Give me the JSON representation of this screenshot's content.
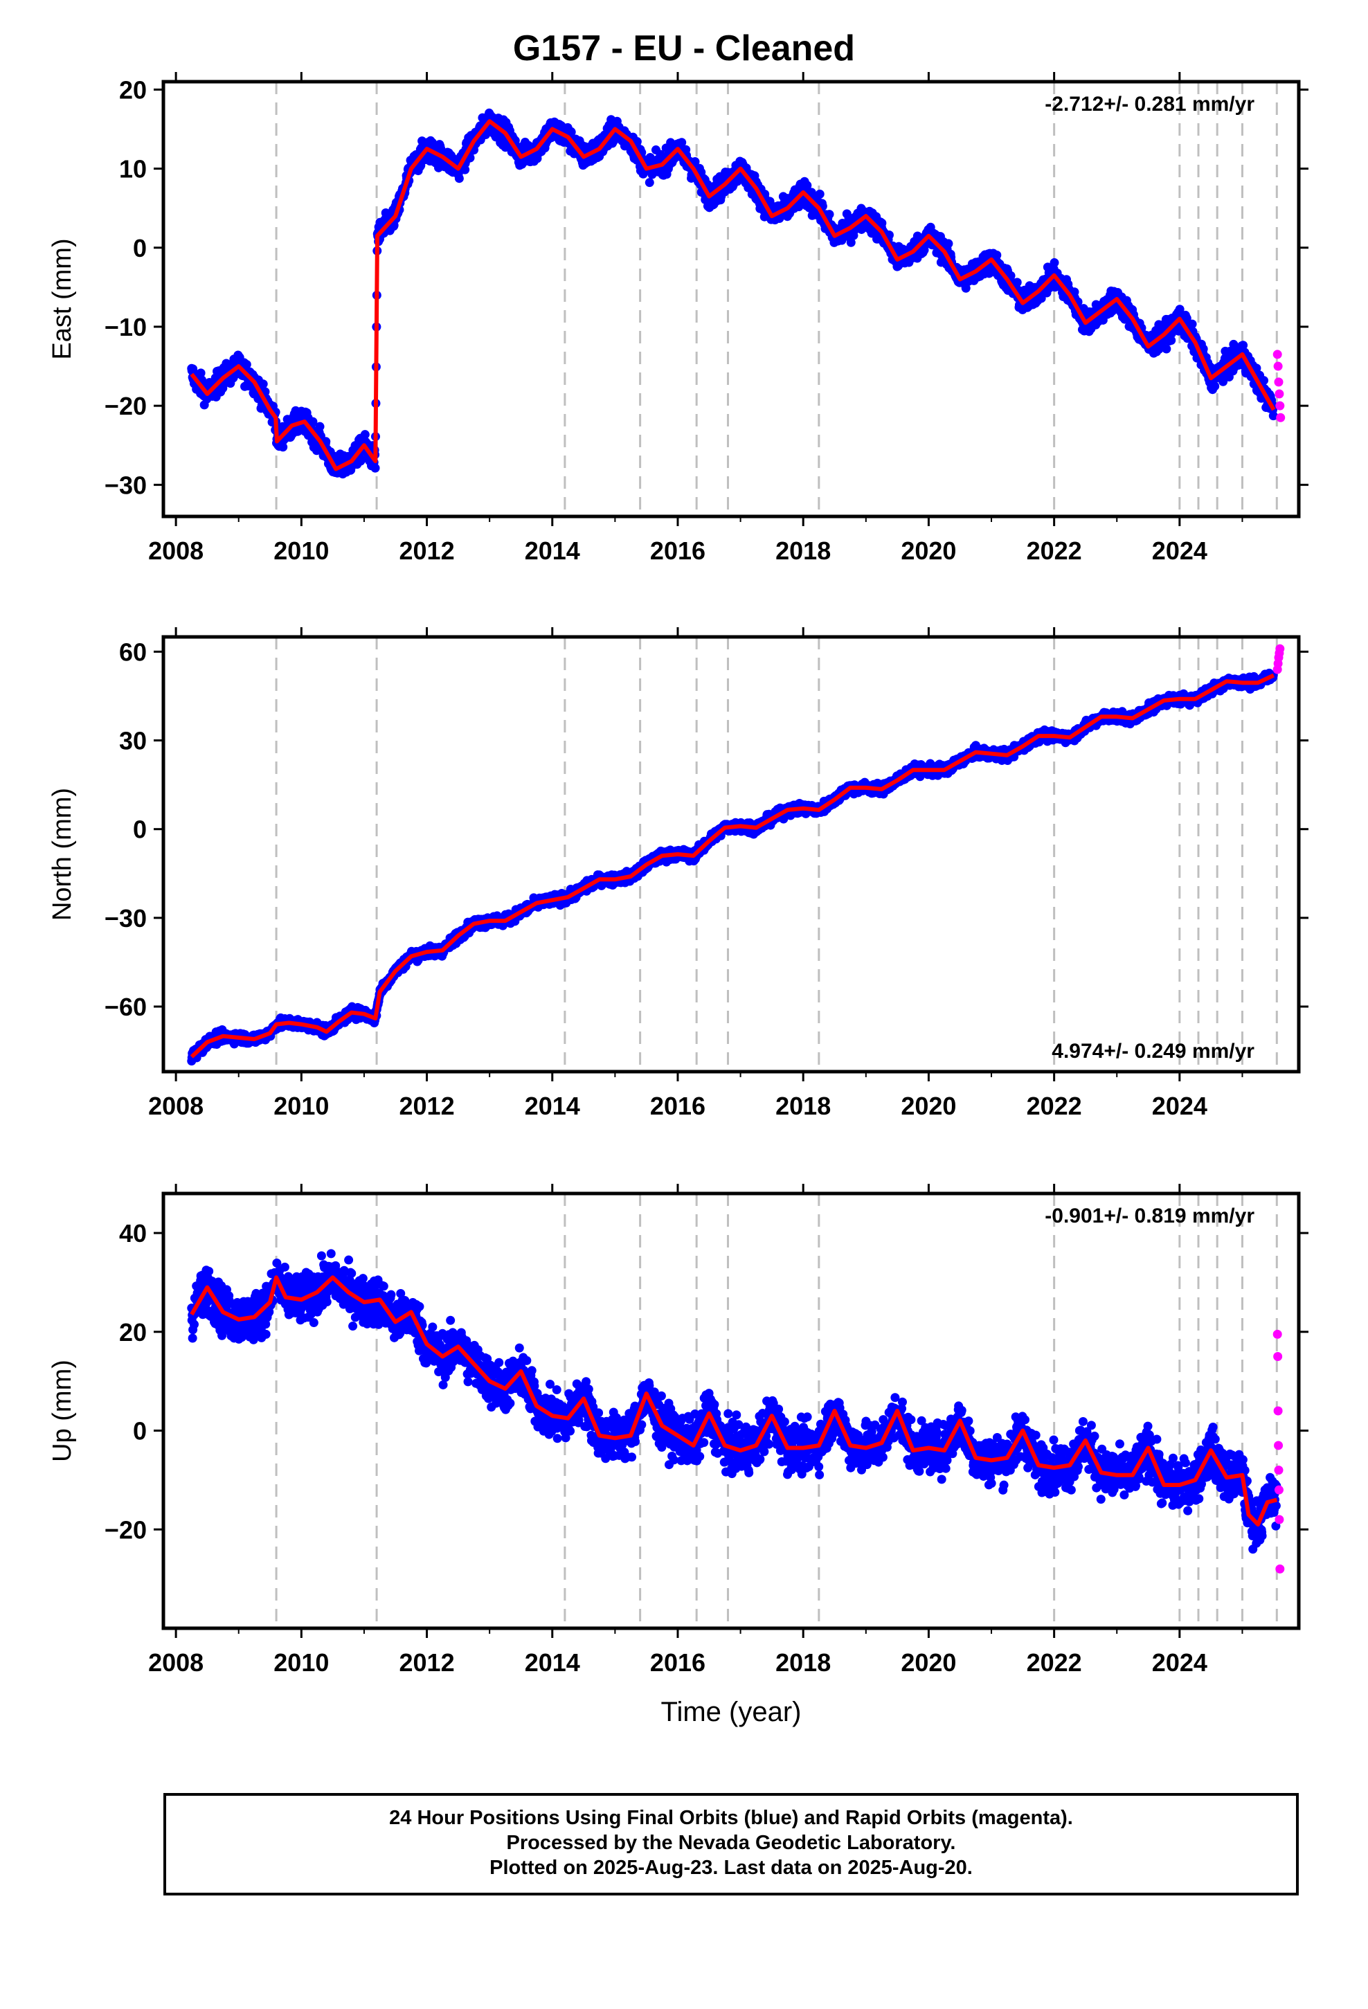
{
  "title": "G157  - EU - Cleaned",
  "footer": {
    "line1": "24 Hour Positions Using Final Orbits (blue) and Rapid Orbits (magenta).",
    "line2": "Processed by the Nevada Geodetic Laboratory.",
    "line3": "Plotted on 2025-Aug-23. Last data on 2025-Aug-20."
  },
  "colors": {
    "final_orbits": "#0000ff",
    "rapid_orbits": "#ff00ff",
    "model_fit": "#ff0000",
    "event_lines": "#bfbfbf"
  },
  "chart_data": [
    {
      "type": "scatter",
      "ylabel": "East (mm)",
      "xlabel": "",
      "xlim": [
        2007.8,
        2025.9
      ],
      "ylim": [
        -34,
        21
      ],
      "xticks": [
        "2008",
        "2010",
        "2012",
        "2014",
        "2016",
        "2018",
        "2020",
        "2022",
        "2024"
      ],
      "yticks": [
        "−30",
        "−20",
        "−10",
        "0",
        "10",
        "20"
      ],
      "rate_label": "-2.712+/- 0.281 mm/yr",
      "rate_position": "top-right",
      "event_lines": [
        2009.6,
        2011.2,
        2014.2,
        2015.4,
        2016.3,
        2016.8,
        2018.25,
        2022.0,
        2024.0,
        2024.3,
        2024.6,
        2025.0,
        2025.55
      ],
      "series": [
        {
          "values": [
            [
              2008.25,
              -16
            ],
            [
              2008.5,
              -18.5
            ],
            [
              2008.75,
              -16.5
            ],
            [
              2009.0,
              -15
            ],
            [
              2009.25,
              -17
            ],
            [
              2009.5,
              -20.5
            ],
            [
              2009.59,
              -21.5
            ],
            [
              2009.61,
              -24.5
            ],
            [
              2009.85,
              -22.5
            ],
            [
              2010.05,
              -22
            ],
            [
              2010.3,
              -24.5
            ],
            [
              2010.55,
              -28
            ],
            [
              2010.8,
              -27
            ],
            [
              2011.0,
              -25
            ],
            [
              2011.18,
              -27
            ],
            [
              2011.21,
              1.5
            ],
            [
              2011.5,
              4
            ],
            [
              2011.75,
              10
            ],
            [
              2012.0,
              12.5
            ],
            [
              2012.25,
              11.5
            ],
            [
              2012.5,
              10
            ],
            [
              2012.75,
              13.5
            ],
            [
              2013.0,
              16
            ],
            [
              2013.25,
              14.5
            ],
            [
              2013.5,
              11.5
            ],
            [
              2013.75,
              12.5
            ],
            [
              2014.0,
              15
            ],
            [
              2014.25,
              14
            ],
            [
              2014.5,
              11.5
            ],
            [
              2014.75,
              12.5
            ],
            [
              2015.0,
              15
            ],
            [
              2015.25,
              13.5
            ],
            [
              2015.5,
              10
            ],
            [
              2015.75,
              10.5
            ],
            [
              2016.0,
              12.5
            ],
            [
              2016.25,
              10
            ],
            [
              2016.5,
              6.5
            ],
            [
              2016.75,
              8
            ],
            [
              2017.0,
              10
            ],
            [
              2017.25,
              7.5
            ],
            [
              2017.5,
              4
            ],
            [
              2017.75,
              5
            ],
            [
              2018.0,
              7
            ],
            [
              2018.25,
              5
            ],
            [
              2018.5,
              1.5
            ],
            [
              2018.75,
              2.5
            ],
            [
              2019.0,
              4
            ],
            [
              2019.25,
              2
            ],
            [
              2019.5,
              -1.5
            ],
            [
              2019.75,
              -0.5
            ],
            [
              2020.0,
              1.5
            ],
            [
              2020.25,
              -0.5
            ],
            [
              2020.5,
              -4
            ],
            [
              2020.75,
              -3
            ],
            [
              2021.0,
              -1.5
            ],
            [
              2021.25,
              -4
            ],
            [
              2021.5,
              -7
            ],
            [
              2021.75,
              -5.5
            ],
            [
              2022.0,
              -3.5
            ],
            [
              2022.25,
              -6
            ],
            [
              2022.5,
              -9.5
            ],
            [
              2022.75,
              -8
            ],
            [
              2023.0,
              -6.5
            ],
            [
              2023.25,
              -9
            ],
            [
              2023.5,
              -12.5
            ],
            [
              2023.75,
              -11
            ],
            [
              2024.0,
              -9
            ],
            [
              2024.25,
              -12
            ],
            [
              2024.5,
              -16.5
            ],
            [
              2024.75,
              -15
            ],
            [
              2025.0,
              -13.5
            ],
            [
              2025.25,
              -17
            ],
            [
              2025.5,
              -20.5
            ]
          ]
        }
      ],
      "rapid_values": [
        [
          2025.56,
          -13.5
        ],
        [
          2025.57,
          -15
        ],
        [
          2025.58,
          -17
        ],
        [
          2025.59,
          -18.5
        ],
        [
          2025.6,
          -20
        ],
        [
          2025.61,
          -21.5
        ]
      ]
    },
    {
      "type": "scatter",
      "ylabel": "North (mm)",
      "xlabel": "",
      "xlim": [
        2007.8,
        2025.9
      ],
      "ylim": [
        -82,
        65
      ],
      "xticks": [
        "2008",
        "2010",
        "2012",
        "2014",
        "2016",
        "2018",
        "2020",
        "2022",
        "2024"
      ],
      "yticks": [
        "−60",
        "−30",
        "0",
        "30",
        "60"
      ],
      "rate_label": "4.974+/- 0.249 mm/yr",
      "rate_position": "bottom-right",
      "event_lines": [
        2009.6,
        2011.2,
        2014.2,
        2015.4,
        2016.3,
        2016.8,
        2018.25,
        2022.0,
        2024.0,
        2024.3,
        2024.6,
        2025.0,
        2025.55
      ],
      "series": [
        {
          "values": [
            [
              2008.25,
              -77
            ],
            [
              2008.5,
              -72
            ],
            [
              2008.75,
              -70
            ],
            [
              2009.0,
              -70.5
            ],
            [
              2009.25,
              -71
            ],
            [
              2009.5,
              -69
            ],
            [
              2009.6,
              -66
            ],
            [
              2009.8,
              -65.5
            ],
            [
              2010.0,
              -66
            ],
            [
              2010.25,
              -67
            ],
            [
              2010.4,
              -68.5
            ],
            [
              2010.6,
              -65
            ],
            [
              2010.8,
              -62
            ],
            [
              2011.0,
              -62.5
            ],
            [
              2011.18,
              -64
            ],
            [
              2011.25,
              -55
            ],
            [
              2011.5,
              -48
            ],
            [
              2011.75,
              -43
            ],
            [
              2012.0,
              -41.5
            ],
            [
              2012.25,
              -41
            ],
            [
              2012.5,
              -36
            ],
            [
              2012.75,
              -32
            ],
            [
              2013.0,
              -31
            ],
            [
              2013.25,
              -31
            ],
            [
              2013.5,
              -28
            ],
            [
              2013.75,
              -25
            ],
            [
              2014.0,
              -24
            ],
            [
              2014.25,
              -23
            ],
            [
              2014.5,
              -20
            ],
            [
              2014.75,
              -17
            ],
            [
              2015.0,
              -17
            ],
            [
              2015.25,
              -16
            ],
            [
              2015.5,
              -12
            ],
            [
              2015.75,
              -9
            ],
            [
              2016.0,
              -8.5
            ],
            [
              2016.25,
              -9
            ],
            [
              2016.5,
              -4
            ],
            [
              2016.75,
              0.5
            ],
            [
              2017.0,
              1
            ],
            [
              2017.25,
              0.5
            ],
            [
              2017.5,
              3.5
            ],
            [
              2017.75,
              6.5
            ],
            [
              2018.0,
              7
            ],
            [
              2018.25,
              6.5
            ],
            [
              2018.5,
              10
            ],
            [
              2018.75,
              14
            ],
            [
              2019.0,
              14
            ],
            [
              2019.25,
              13.5
            ],
            [
              2019.5,
              16.5
            ],
            [
              2019.75,
              20
            ],
            [
              2020.0,
              20
            ],
            [
              2020.25,
              20
            ],
            [
              2020.5,
              23
            ],
            [
              2020.75,
              26
            ],
            [
              2021.0,
              25.5
            ],
            [
              2021.25,
              25
            ],
            [
              2021.5,
              28
            ],
            [
              2021.75,
              31.5
            ],
            [
              2022.0,
              31.5
            ],
            [
              2022.25,
              31
            ],
            [
              2022.5,
              34.5
            ],
            [
              2022.75,
              38
            ],
            [
              2023.0,
              38
            ],
            [
              2023.25,
              37.5
            ],
            [
              2023.5,
              40.5
            ],
            [
              2023.75,
              43.5
            ],
            [
              2024.0,
              44
            ],
            [
              2024.25,
              44
            ],
            [
              2024.5,
              47
            ],
            [
              2024.75,
              50
            ],
            [
              2025.0,
              49.5
            ],
            [
              2025.25,
              49.5
            ],
            [
              2025.5,
              52
            ]
          ]
        }
      ],
      "rapid_values": [
        [
          2025.56,
          54
        ],
        [
          2025.57,
          56
        ],
        [
          2025.58,
          58
        ],
        [
          2025.59,
          59.5
        ],
        [
          2025.6,
          61
        ]
      ]
    },
    {
      "type": "scatter",
      "ylabel": "Up (mm)",
      "xlabel": "Time (year)",
      "xlim": [
        2007.8,
        2025.9
      ],
      "ylim": [
        -40,
        48
      ],
      "xticks": [
        "2008",
        "2010",
        "2012",
        "2014",
        "2016",
        "2018",
        "2020",
        "2022",
        "2024"
      ],
      "yticks": [
        "−20",
        "0",
        "20",
        "40"
      ],
      "rate_label": "-0.901+/- 0.819 mm/yr",
      "rate_position": "top-right",
      "event_lines": [
        2009.6,
        2011.2,
        2014.2,
        2015.4,
        2016.3,
        2016.8,
        2018.25,
        2022.0,
        2024.0,
        2024.3,
        2024.6,
        2025.0,
        2025.55
      ],
      "series": [
        {
          "values": [
            [
              2008.25,
              23.5
            ],
            [
              2008.5,
              29
            ],
            [
              2008.75,
              24
            ],
            [
              2009.0,
              22.5
            ],
            [
              2009.25,
              23
            ],
            [
              2009.5,
              26
            ],
            [
              2009.6,
              31
            ],
            [
              2009.75,
              27
            ],
            [
              2010.0,
              26.5
            ],
            [
              2010.25,
              28
            ],
            [
              2010.5,
              31
            ],
            [
              2010.75,
              28
            ],
            [
              2011.0,
              26
            ],
            [
              2011.25,
              26.5
            ],
            [
              2011.5,
              22
            ],
            [
              2011.75,
              24
            ],
            [
              2012.0,
              17.5
            ],
            [
              2012.25,
              15
            ],
            [
              2012.5,
              17
            ],
            [
              2012.75,
              13.5
            ],
            [
              2013.0,
              10
            ],
            [
              2013.25,
              8.5
            ],
            [
              2013.5,
              12
            ],
            [
              2013.75,
              5
            ],
            [
              2014.0,
              3
            ],
            [
              2014.25,
              2.5
            ],
            [
              2014.5,
              6.5
            ],
            [
              2014.75,
              -1
            ],
            [
              2015.0,
              -1.5
            ],
            [
              2015.25,
              -1
            ],
            [
              2015.5,
              7.5
            ],
            [
              2015.75,
              1
            ],
            [
              2016.0,
              -1
            ],
            [
              2016.25,
              -3
            ],
            [
              2016.5,
              3.5
            ],
            [
              2016.75,
              -3
            ],
            [
              2017.0,
              -4
            ],
            [
              2017.25,
              -3
            ],
            [
              2017.5,
              3
            ],
            [
              2017.75,
              -3.5
            ],
            [
              2018.0,
              -3.5
            ],
            [
              2018.25,
              -3
            ],
            [
              2018.5,
              4
            ],
            [
              2018.75,
              -3
            ],
            [
              2019.0,
              -3.5
            ],
            [
              2019.25,
              -2.5
            ],
            [
              2019.5,
              4
            ],
            [
              2019.75,
              -4
            ],
            [
              2020.0,
              -3.5
            ],
            [
              2020.25,
              -4
            ],
            [
              2020.5,
              2
            ],
            [
              2020.75,
              -5.5
            ],
            [
              2021.0,
              -6
            ],
            [
              2021.25,
              -5.5
            ],
            [
              2021.5,
              0
            ],
            [
              2021.75,
              -7
            ],
            [
              2022.0,
              -7.5
            ],
            [
              2022.25,
              -7
            ],
            [
              2022.5,
              -2
            ],
            [
              2022.75,
              -8.5
            ],
            [
              2023.0,
              -9
            ],
            [
              2023.25,
              -9
            ],
            [
              2023.5,
              -3.5
            ],
            [
              2023.75,
              -11
            ],
            [
              2024.0,
              -11
            ],
            [
              2024.25,
              -10
            ],
            [
              2024.5,
              -4
            ],
            [
              2024.75,
              -9.5
            ],
            [
              2025.0,
              -9
            ],
            [
              2025.1,
              -17
            ],
            [
              2025.25,
              -19
            ],
            [
              2025.4,
              -14.5
            ],
            [
              2025.55,
              -14
            ]
          ]
        }
      ],
      "rapid_values": [
        [
          2025.56,
          19.5
        ],
        [
          2025.565,
          15
        ],
        [
          2025.57,
          4
        ],
        [
          2025.575,
          -3
        ],
        [
          2025.58,
          -8
        ],
        [
          2025.585,
          -12
        ],
        [
          2025.59,
          -18
        ],
        [
          2025.6,
          -28
        ]
      ]
    }
  ]
}
